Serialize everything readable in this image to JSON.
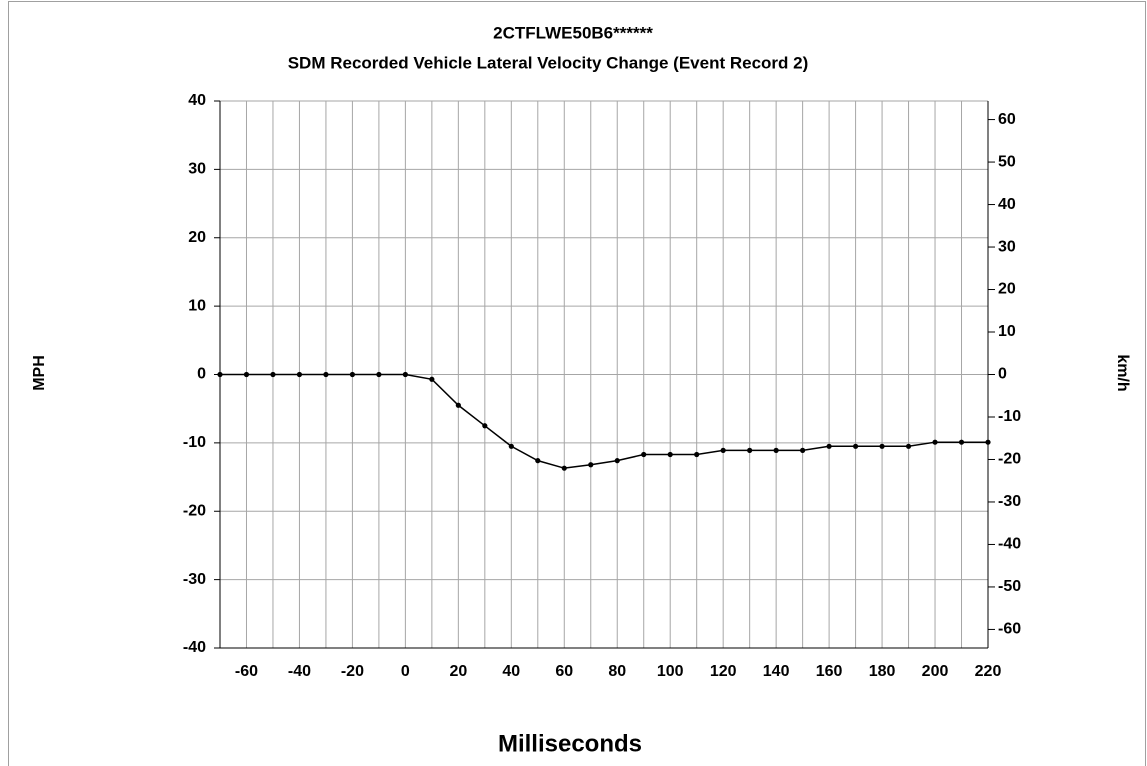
{
  "chart_data": {
    "type": "line",
    "title": "2CTFLWE50B6******",
    "subtitle": "SDM Recorded Vehicle Lateral Velocity Change (Event Record 2)",
    "x_label": "Milliseconds",
    "y_label": "MPH",
    "y2_label": "km/h",
    "x": [
      -70,
      -60,
      -50,
      -40,
      -30,
      -20,
      -10,
      0,
      10,
      20,
      30,
      40,
      50,
      60,
      70,
      80,
      90,
      100,
      110,
      120,
      130,
      140,
      150,
      160,
      170,
      180,
      190,
      200,
      210,
      220
    ],
    "series": [
      {
        "name": "MPH",
        "color": "#000000",
        "values": [
          0,
          0,
          0,
          0,
          0,
          0,
          0,
          0,
          -0.7,
          -4.5,
          -7.5,
          -10.5,
          -12.6,
          -13.7,
          -13.2,
          -12.6,
          -11.7,
          -11.7,
          -11.7,
          -11.1,
          -11.1,
          -11.1,
          -11.1,
          -10.5,
          -10.5,
          -10.5,
          -10.5,
          -9.9,
          -9.9,
          -9.9
        ]
      }
    ],
    "xlim": [
      -70,
      220
    ],
    "xticks": [
      -60,
      -40,
      -20,
      0,
      20,
      40,
      60,
      80,
      100,
      120,
      140,
      160,
      180,
      200,
      220
    ],
    "x_minor_grid": [
      -70,
      -50,
      -30,
      -10,
      10,
      30,
      50,
      70,
      90,
      110,
      130,
      150,
      170,
      190,
      210
    ],
    "ylim": [
      -40,
      40
    ],
    "yticks": [
      -40,
      -30,
      -20,
      -10,
      0,
      10,
      20,
      30,
      40
    ],
    "y2lim": [
      -64.37,
      64.37
    ],
    "y2ticks": [
      -60,
      -50,
      -40,
      -30,
      -20,
      -10,
      0,
      10,
      20,
      30,
      40,
      50,
      60
    ],
    "grid": true
  }
}
